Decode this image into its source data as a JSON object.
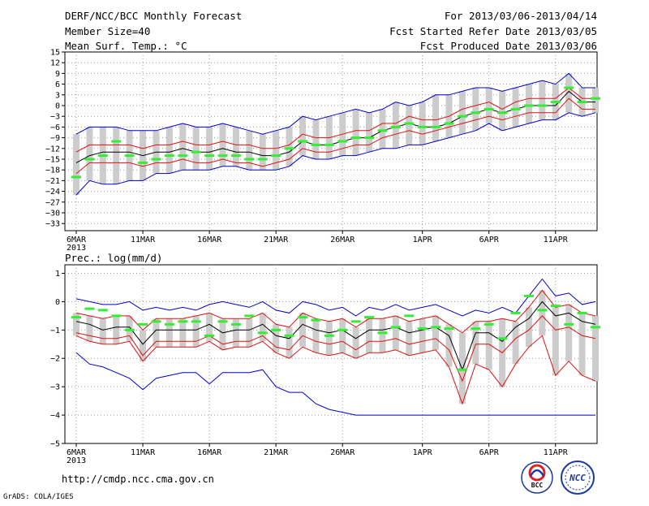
{
  "header": {
    "title": "DERF/NCC/BCC Monthly Forecast",
    "member_size": "Member Size=40",
    "variable": "Mean Surf. Temp.: °C",
    "period": "For 2013/03/06-2013/04/14",
    "fcst_started": "Fcst Started Refer Date 2013/03/05",
    "fcst_produced": "Fcst Produced Date 2013/03/06"
  },
  "footer": {
    "url": "http://cmdp.ncc.cma.gov.cn",
    "credit": "GrADS: COLA/IGES",
    "logo_bcc": "BCC",
    "logo_ncc": "NCC"
  },
  "colors": {
    "box": "#cccccc",
    "median": "#33ee33",
    "mean": "#000000",
    "spread": "#dd1111",
    "extreme": "#0000cc",
    "grid": "#999999"
  },
  "chart_data": [
    {
      "type": "line",
      "title": "Mean Surf. Temp.: °C",
      "xlabel": "",
      "ylabel": "",
      "ylim": [
        -35,
        15
      ],
      "yticks": [
        15,
        12,
        9,
        6,
        3,
        0,
        -3,
        -6,
        -9,
        -12,
        -15,
        -18,
        -21,
        -24,
        -27,
        -30,
        -33
      ],
      "xticks": [
        {
          "day": 0,
          "label": "6MAR",
          "sub": "2013"
        },
        {
          "day": 5,
          "label": "11MAR"
        },
        {
          "day": 10,
          "label": "16MAR"
        },
        {
          "day": 15,
          "label": "21MAR"
        },
        {
          "day": 20,
          "label": "26MAR"
        },
        {
          "day": 26,
          "label": "1APR"
        },
        {
          "day": 31,
          "label": "6APR"
        },
        {
          "day": 36,
          "label": "11APR"
        }
      ],
      "series": [
        {
          "name": "max",
          "values": [
            -8,
            -6,
            -6,
            -6,
            -7,
            -7,
            -7,
            -6,
            -5,
            -6,
            -6,
            -5,
            -6,
            -7,
            -8,
            -7,
            -6,
            -3,
            -4,
            -3,
            -2,
            -1,
            -2,
            -1,
            1,
            0,
            1,
            3,
            3,
            4,
            5,
            5,
            4,
            5,
            6,
            7,
            6,
            9,
            5,
            5
          ]
        },
        {
          "name": "upper",
          "values": [
            -13,
            -11,
            -11,
            -11,
            -11,
            -12,
            -11,
            -11,
            -10,
            -11,
            -11,
            -10,
            -11,
            -11,
            -12,
            -12,
            -11,
            -8,
            -9,
            -9,
            -8,
            -7,
            -7,
            -5,
            -5,
            -3,
            -4,
            -4,
            -3,
            -1,
            0,
            1,
            -1,
            1,
            2,
            2,
            2,
            5,
            2,
            2
          ]
        },
        {
          "name": "mean",
          "values": [
            -16,
            -14,
            -13,
            -13,
            -13,
            -14,
            -13,
            -13,
            -12,
            -13,
            -13,
            -12,
            -13,
            -13,
            -14,
            -14,
            -13,
            -10,
            -11,
            -11,
            -10,
            -9,
            -9,
            -7,
            -6,
            -5,
            -6,
            -6,
            -5,
            -3,
            -2,
            -1,
            -2,
            -1,
            0,
            0,
            0,
            4,
            1,
            1
          ]
        },
        {
          "name": "lower",
          "values": [
            -19,
            -16,
            -16,
            -16,
            -16,
            -17,
            -16,
            -16,
            -15,
            -16,
            -16,
            -15,
            -16,
            -16,
            -17,
            -16,
            -15,
            -12,
            -13,
            -13,
            -12,
            -11,
            -11,
            -9,
            -8,
            -7,
            -8,
            -7,
            -6,
            -5,
            -4,
            -3,
            -4,
            -3,
            -2,
            -2,
            -2,
            2,
            -1,
            -1
          ]
        },
        {
          "name": "min",
          "values": [
            -25,
            -21,
            -22,
            -22,
            -21,
            -21,
            -19,
            -19,
            -18,
            -18,
            -18,
            -17,
            -17,
            -18,
            -18,
            -18,
            -17,
            -14,
            -15,
            -15,
            -14,
            -14,
            -13,
            -12,
            -12,
            -11,
            -11,
            -10,
            -9,
            -8,
            -7,
            -5,
            -7,
            -6,
            -5,
            -4,
            -4,
            -2,
            -3,
            -2
          ]
        },
        {
          "name": "median",
          "values": [
            -20,
            -15,
            -14,
            -10,
            -14,
            -16,
            -15,
            -14,
            -14,
            -13,
            -14,
            -14,
            -14,
            -15,
            -15,
            -14,
            -12,
            -10,
            -11,
            -11,
            -10,
            -9,
            -9,
            -7,
            -6,
            -5,
            -6,
            -6,
            -5,
            -3,
            -2,
            -1,
            -2,
            -1,
            0,
            0,
            1,
            5,
            1,
            2
          ]
        }
      ]
    },
    {
      "type": "line",
      "title": "Prec.: log(mm/d)",
      "xlabel": "",
      "ylabel": "",
      "ylim": [
        -5,
        1.3
      ],
      "yticks": [
        1,
        0,
        -1,
        -2,
        -3,
        -4,
        -5
      ],
      "xticks": [
        {
          "day": 0,
          "label": "6MAR",
          "sub": "2013"
        },
        {
          "day": 5,
          "label": "11MAR"
        },
        {
          "day": 10,
          "label": "16MAR"
        },
        {
          "day": 15,
          "label": "21MAR"
        },
        {
          "day": 20,
          "label": "26MAR"
        },
        {
          "day": 26,
          "label": "1APR"
        },
        {
          "day": 31,
          "label": "6APR"
        },
        {
          "day": 36,
          "label": "11APR"
        }
      ],
      "series": [
        {
          "name": "max",
          "values": [
            0.1,
            0,
            -0.1,
            -0.1,
            0,
            -0.3,
            -0.2,
            -0.3,
            -0.2,
            -0.3,
            -0.1,
            0,
            -0.1,
            -0.2,
            0,
            -0.3,
            -0.4,
            0,
            -0.1,
            -0.3,
            -0.2,
            -0.5,
            -0.2,
            -0.3,
            -0.1,
            -0.3,
            -0.2,
            -0.1,
            -0.3,
            -0.5,
            -0.3,
            -0.4,
            -0.2,
            -0.4,
            0.2,
            0.8,
            0.2,
            0.3,
            -0.1,
            0
          ]
        },
        {
          "name": "upper",
          "values": [
            -0.4,
            -0.5,
            -0.6,
            -0.5,
            -0.5,
            -1,
            -0.6,
            -0.6,
            -0.6,
            -0.5,
            -0.4,
            -0.6,
            -0.6,
            -0.6,
            -0.4,
            -0.8,
            -0.9,
            -0.4,
            -0.6,
            -0.7,
            -0.6,
            -0.9,
            -0.6,
            -0.6,
            -0.5,
            -0.7,
            -0.6,
            -0.5,
            -0.8,
            -1.1,
            -0.7,
            -0.7,
            -0.6,
            -0.7,
            -0.2,
            0.4,
            -0.2,
            -0.1,
            -0.4,
            -0.5
          ]
        },
        {
          "name": "mean",
          "values": [
            -0.7,
            -0.8,
            -1,
            -0.9,
            -0.9,
            -1.5,
            -1,
            -1,
            -1,
            -1,
            -0.8,
            -1.1,
            -1,
            -1,
            -0.8,
            -1.2,
            -1.3,
            -0.8,
            -1,
            -1.1,
            -1,
            -1.3,
            -1,
            -1,
            -0.9,
            -1.1,
            -1,
            -0.9,
            -1.2,
            -2.4,
            -1.1,
            -1.1,
            -1.4,
            -0.9,
            -0.6,
            0,
            -0.5,
            -0.4,
            -0.7,
            -0.8
          ]
        },
        {
          "name": "lower",
          "values": [
            -1.1,
            -1.2,
            -1.3,
            -1.3,
            -1.2,
            -1.9,
            -1.4,
            -1.4,
            -1.4,
            -1.4,
            -1.2,
            -1.5,
            -1.4,
            -1.4,
            -1.2,
            -1.6,
            -1.7,
            -1.2,
            -1.4,
            -1.5,
            -1.4,
            -1.7,
            -1.4,
            -1.4,
            -1.3,
            -1.5,
            -1.4,
            -1.3,
            -1.7,
            -2.8,
            -1.5,
            -1.5,
            -1.8,
            -1.3,
            -1,
            -0.5,
            -1,
            -0.9,
            -1.2,
            -1.3
          ]
        },
        {
          "name": "min",
          "values": [
            -1.8,
            -2.2,
            -2.3,
            -2.5,
            -2.7,
            -3.1,
            -2.7,
            -2.6,
            -2.5,
            -2.5,
            -2.9,
            -2.5,
            -2.5,
            -2.5,
            -2.4,
            -3,
            -3.2,
            -3.2,
            -3.6,
            -3.8,
            -3.9,
            -4,
            -4,
            -4,
            -4,
            -4,
            -4,
            -4,
            -4,
            -4,
            -4,
            -4,
            -4,
            -4,
            -4,
            -4,
            -4,
            -4,
            -4,
            -4
          ]
        },
        {
          "name": "deep",
          "values": [
            -1.2,
            -1.4,
            -1.5,
            -1.5,
            -1.4,
            -2.1,
            -1.6,
            -1.6,
            -1.6,
            -1.6,
            -1.4,
            -1.7,
            -1.6,
            -1.6,
            -1.4,
            -1.8,
            -2,
            -1.6,
            -1.8,
            -1.9,
            -1.8,
            -2,
            -1.8,
            -1.8,
            -1.7,
            -1.9,
            -1.8,
            -1.7,
            -2.3,
            -3.6,
            -2.2,
            -2.4,
            -3,
            -2.2,
            -1.6,
            -1.2,
            -2.6,
            -2.1,
            -2.6,
            -2.8
          ]
        },
        {
          "name": "median",
          "values": [
            -0.55,
            -0.25,
            -0.3,
            -0.5,
            -1,
            -0.8,
            -0.7,
            -0.8,
            -0.7,
            -0.7,
            -1.2,
            -0.7,
            -0.8,
            -0.5,
            -1.1,
            -1,
            -1.2,
            -0.55,
            -0.65,
            -1.2,
            -1,
            -0.7,
            -0.55,
            -1.1,
            -0.9,
            -0.5,
            -0.95,
            -0.9,
            -0.95,
            -2.4,
            -0.95,
            -0.8,
            -1.3,
            -0.4,
            0.2,
            -0.3,
            -0.15,
            -0.8,
            -0.4,
            -0.9
          ]
        }
      ]
    }
  ]
}
